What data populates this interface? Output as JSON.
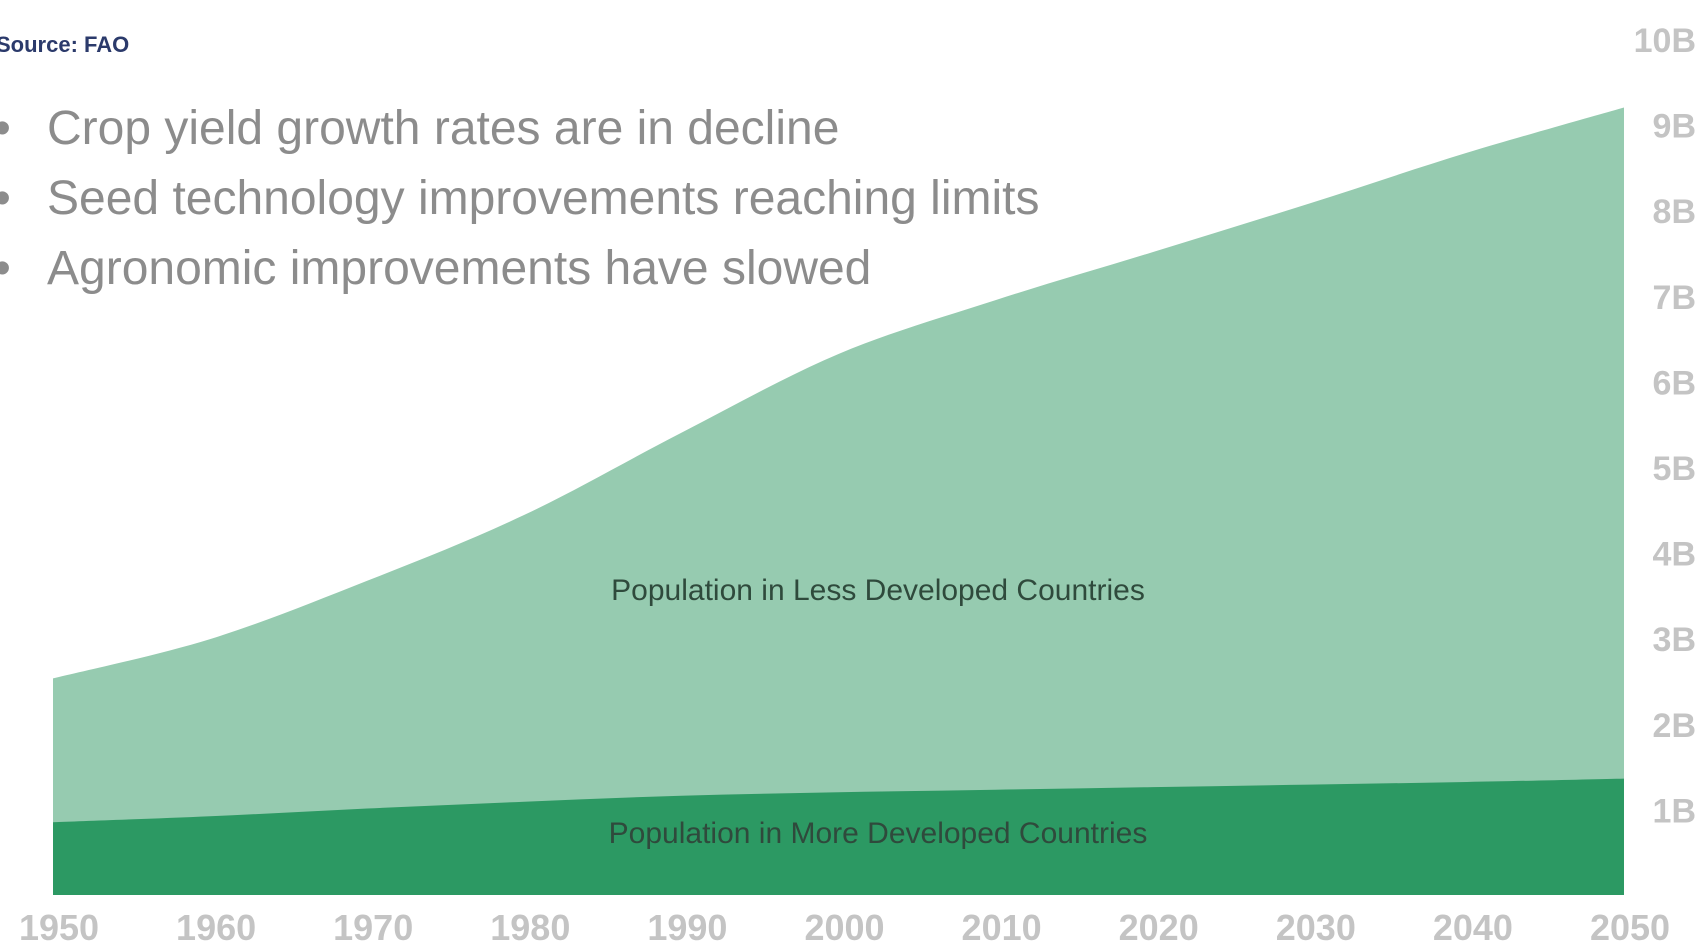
{
  "header": {
    "title": "",
    "source": "Source: FAO"
  },
  "bullets": [
    "Crop yield growth rates are in decline",
    "Seed technology improvements reaching limits",
    "Agronomic improvements have slowed"
  ],
  "colors": {
    "less_developed": "#96cbb0",
    "more_developed": "#2c9963",
    "tick_text": "#c4c4c4",
    "bullet_text": "#8c8c8c",
    "header_text": "#2b3a6b"
  },
  "chart_data": {
    "type": "area",
    "stacked": true,
    "title": "",
    "xlabel": "",
    "ylabel": "",
    "x": [
      1950,
      1960,
      1970,
      1980,
      1990,
      2000,
      2010,
      2020,
      2030,
      2040,
      2050
    ],
    "x_tick_labels": [
      "1950",
      "1960",
      "1970",
      "1980",
      "1990",
      "2000",
      "2010",
      "2020",
      "2030",
      "2040",
      "2050"
    ],
    "y_tick_values": [
      1,
      2,
      3,
      4,
      5,
      6,
      7,
      8,
      9,
      10
    ],
    "y_tick_labels": [
      "1B",
      "2B",
      "3B",
      "4B",
      "5B",
      "6B",
      "7B",
      "8B",
      "9B",
      "10B"
    ],
    "ylim": [
      0,
      10.5
    ],
    "y_axis_position": "right",
    "grid": false,
    "legend": "none",
    "series": [
      {
        "name": "Population in More Developed Countries",
        "values": [
          0.85,
          0.92,
          1.01,
          1.09,
          1.16,
          1.2,
          1.23,
          1.26,
          1.29,
          1.32,
          1.36
        ]
      },
      {
        "name": "Population in Less Developed Countries",
        "values": [
          1.68,
          2.07,
          2.66,
          3.35,
          4.24,
          5.12,
          5.72,
          6.25,
          6.79,
          7.35,
          7.84
        ]
      }
    ]
  }
}
